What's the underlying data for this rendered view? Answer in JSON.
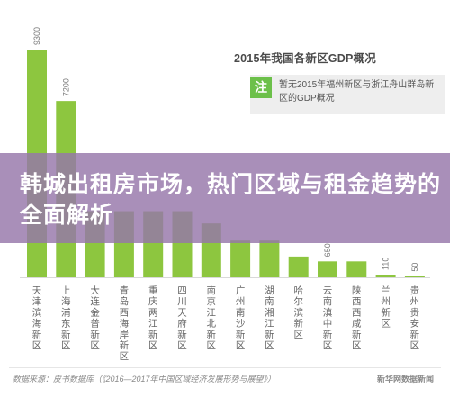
{
  "chart_data": {
    "type": "bar",
    "title": "2015年我国各新区GDP概况",
    "note_icon": "注",
    "note": "暂无2015年福州新区与浙江舟山群岛新区的GDP概况",
    "categories": [
      "天津滨海新区",
      "上海浦东新区",
      "大连金普新区",
      "青岛西海岸新区",
      "重庆两江新区",
      "四川天府新区",
      "南京江北新区",
      "广州南沙新区",
      "湖南湘江新区",
      "哈尔滨新区",
      "云南滇中新区",
      "陕西西咸新区",
      "兰州新区",
      "贵州贵安新区"
    ],
    "values": [
      9300,
      7200,
      2700,
      2700,
      2700,
      2700,
      2200,
      1500,
      1500,
      850,
      650,
      650,
      110,
      50
    ],
    "value_labels": [
      "9300",
      "7200",
      "",
      "",
      "",
      "",
      "",
      "",
      "",
      "",
      "650",
      "",
      "110",
      "50"
    ],
    "ylim": [
      0,
      10000
    ],
    "bar_color": "#8dc63f",
    "legend": "none",
    "grid": false
  },
  "banner": {
    "text": "韩城出租房市场，热门区域与租金趋势的全面解析"
  },
  "footer": {
    "source": "数据来源：皮书数据库（《2016—2017年中国区域经济发展形势与展望》）",
    "brand": "新华网数据新闻"
  }
}
